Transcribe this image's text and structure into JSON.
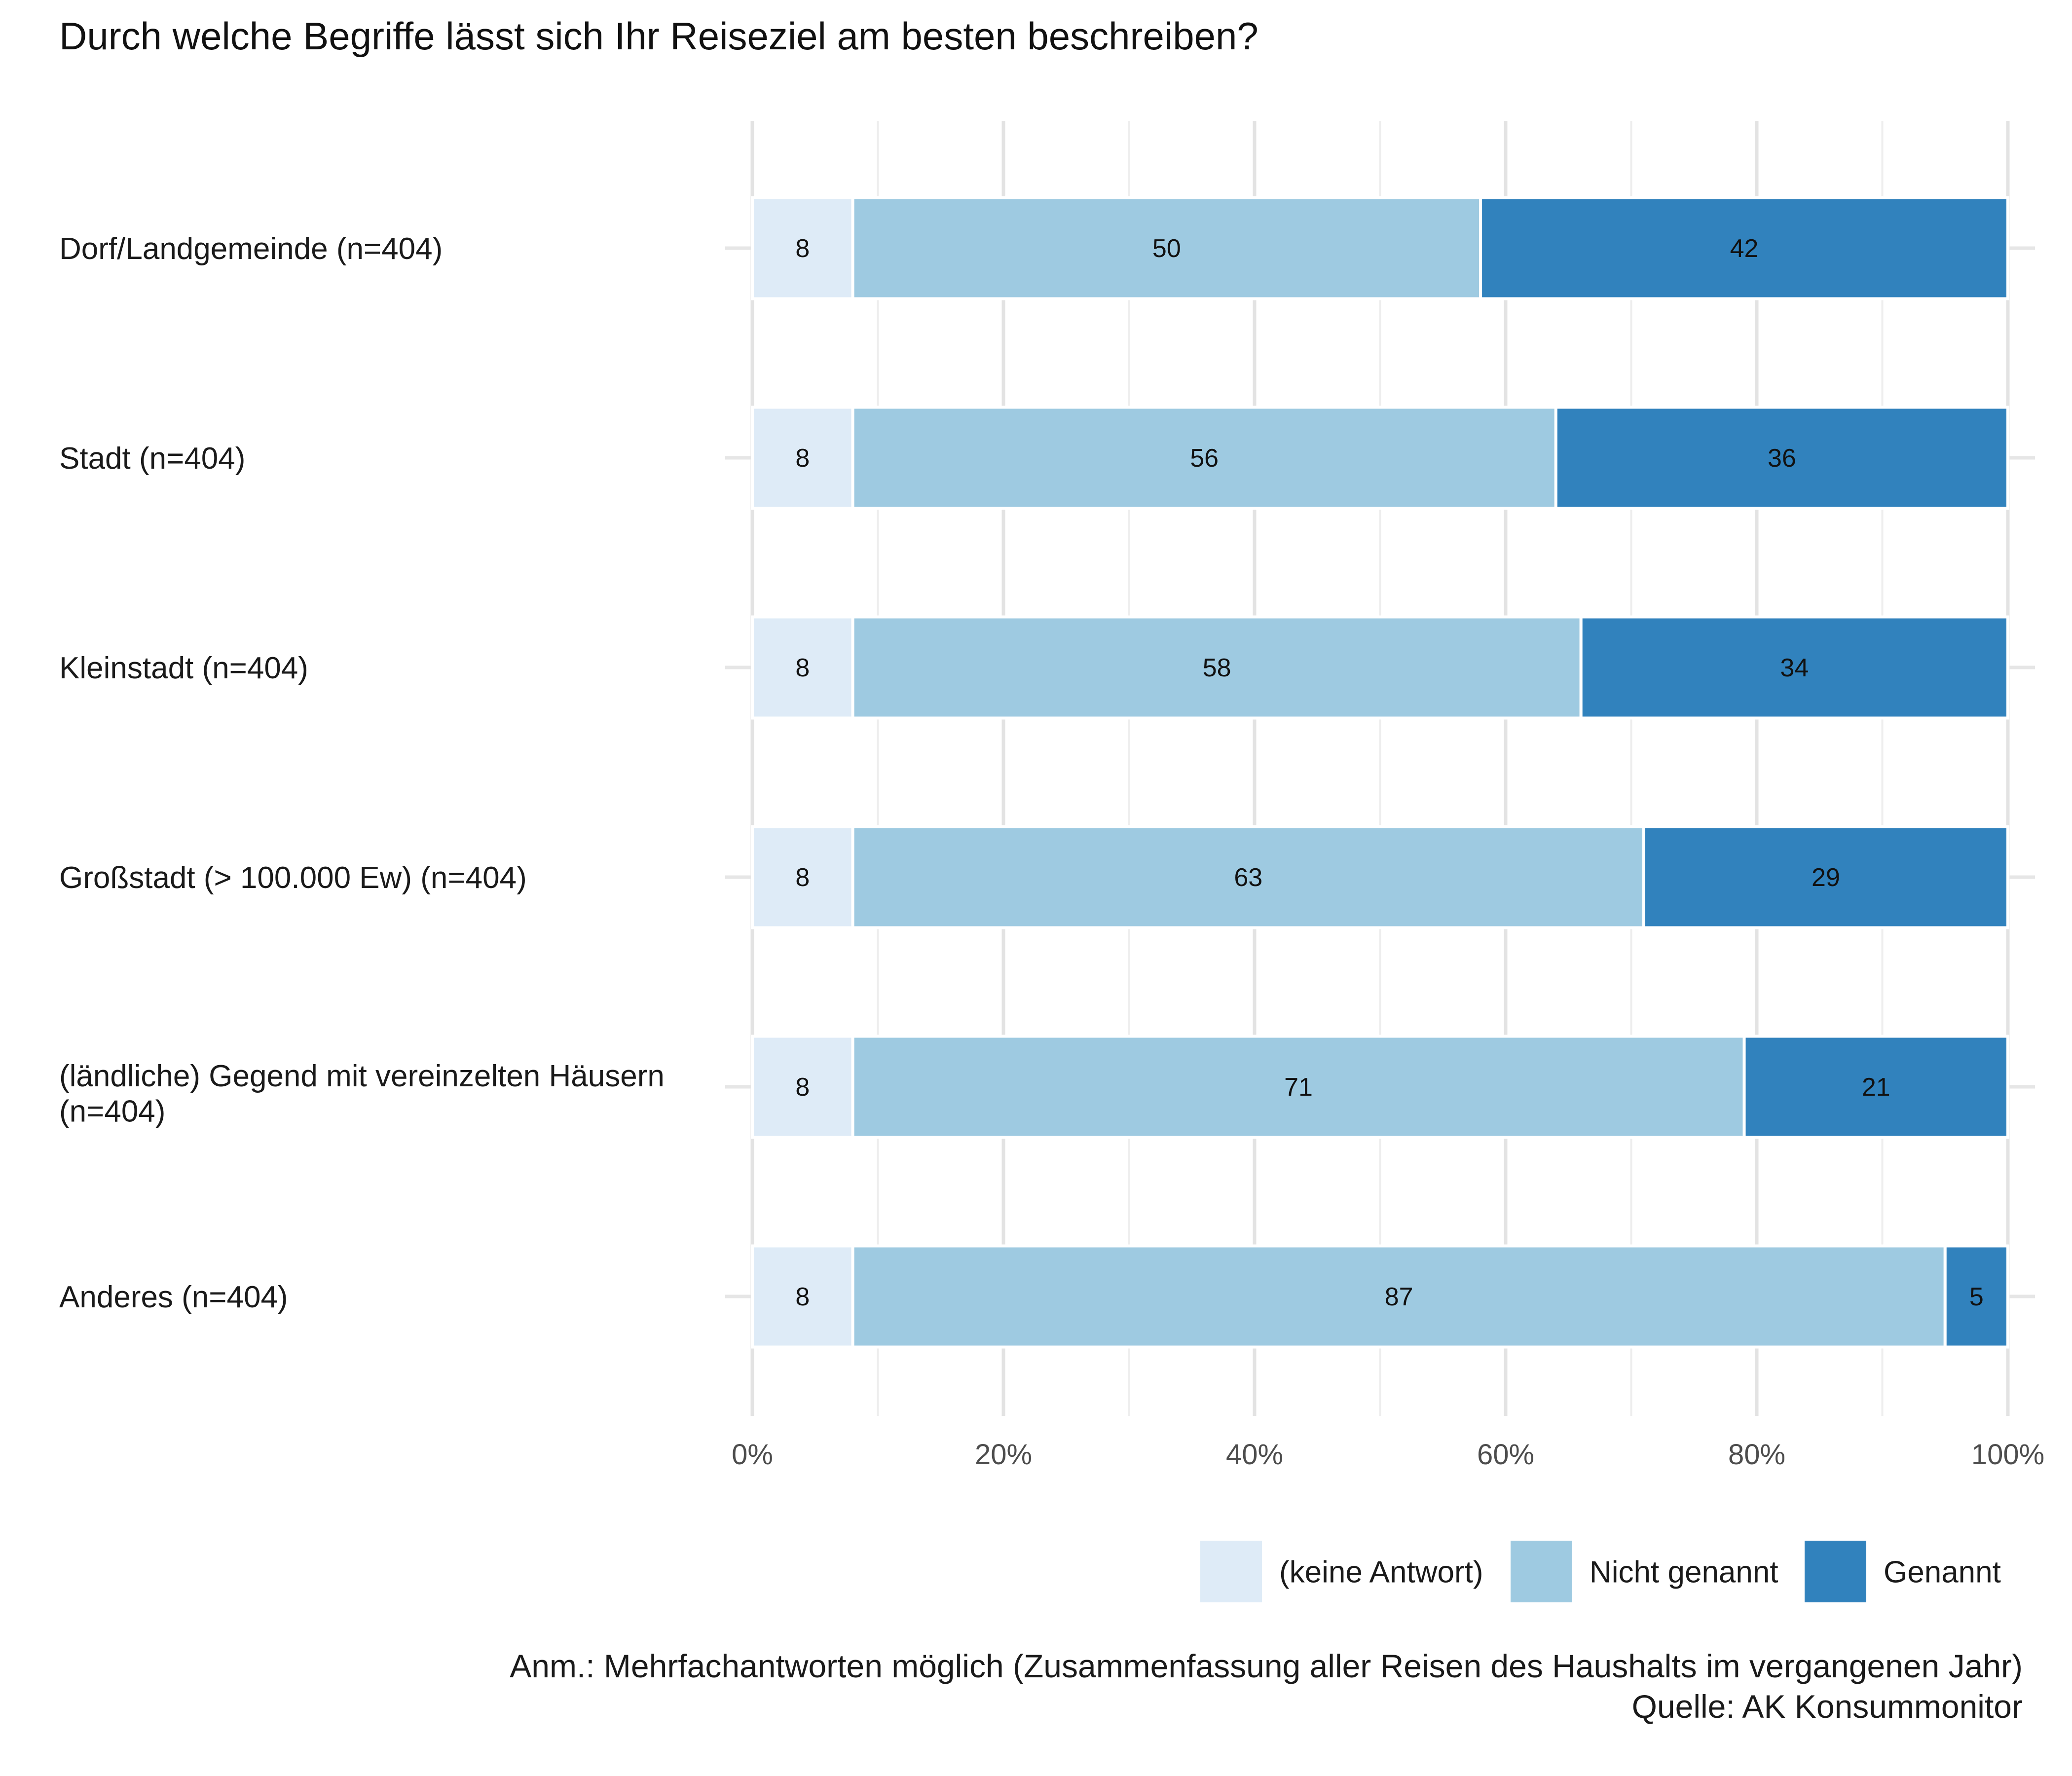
{
  "chart_data": {
    "type": "bar",
    "orientation": "horizontal",
    "stacked": true,
    "title": "Durch welche Begriffe lässt sich Ihr Reiseziel am besten beschreiben?",
    "categories": [
      [
        "Dorf/Landgemeinde (n=404)"
      ],
      [
        "Stadt (n=404)"
      ],
      [
        "Kleinstadt (n=404)"
      ],
      [
        "Großstadt (> 100.000 Ew) (n=404)"
      ],
      [
        "(ländliche) Gegend mit vereinzelten Häusern",
        "(n=404)"
      ],
      [
        "Anderes (n=404)"
      ]
    ],
    "series": [
      {
        "name": "(keine Antwort)",
        "color": "#deebf7",
        "values": [
          8,
          8,
          8,
          8,
          8,
          8
        ]
      },
      {
        "name": "Nicht genannt",
        "color": "#9ecae1",
        "values": [
          50,
          56,
          58,
          63,
          71,
          87
        ]
      },
      {
        "name": "Genannt",
        "color": "#3182bd",
        "values": [
          42,
          36,
          34,
          29,
          21,
          5
        ]
      }
    ],
    "xlim": [
      0,
      100
    ],
    "xticks": [
      "0%",
      "20%",
      "40%",
      "60%",
      "80%",
      "100%"
    ],
    "grid": true,
    "legend_position": "bottom-right",
    "caption": [
      "Anm.: Mehrfachantworten möglich (Zusammenfassung aller Reisen des Haushalts im vergangenen Jahr)",
      "Quelle: AK Konsummonitor"
    ]
  }
}
